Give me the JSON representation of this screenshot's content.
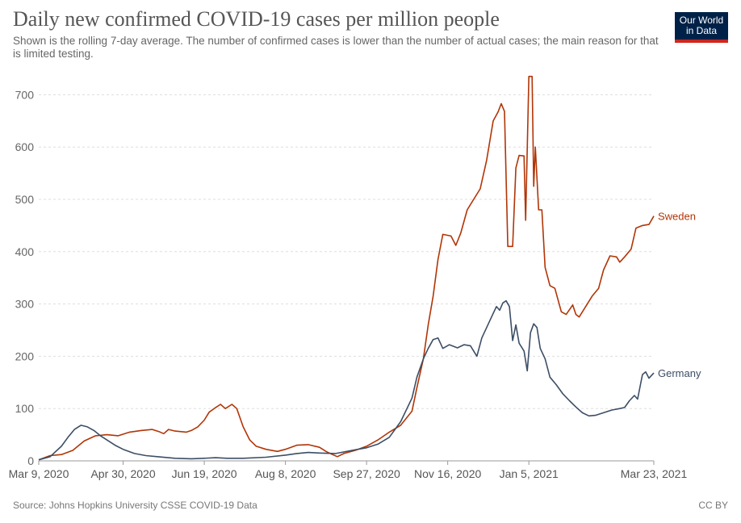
{
  "header": {
    "title": "Daily new confirmed COVID-19 cases per million people",
    "subtitle": "Shown is the rolling 7-day average. The number of confirmed cases is lower than the number of actual cases; the main reason for that is limited testing."
  },
  "logo": {
    "line1": "Our World",
    "line2": "in Data",
    "colors": {
      "bg": "#002147",
      "accent": "#ce261e"
    }
  },
  "footer": {
    "source": "Source: Johns Hopkins University CSSE COVID-19 Data",
    "license": "CC BY"
  },
  "chart_data": {
    "type": "line",
    "title": "Daily new confirmed COVID-19 cases per million people",
    "xlabel": "",
    "ylabel": "",
    "xlim": [
      "2020-03-09",
      "2021-03-23"
    ],
    "ylim": [
      0,
      750
    ],
    "y_ticks": [
      0,
      100,
      200,
      300,
      400,
      500,
      600,
      700
    ],
    "x_ticks": [
      {
        "date": "2020-03-09",
        "label": "Mar 9, 2020"
      },
      {
        "date": "2020-04-30",
        "label": "Apr 30, 2020"
      },
      {
        "date": "2020-06-19",
        "label": "Jun 19, 2020"
      },
      {
        "date": "2020-08-08",
        "label": "Aug 8, 2020"
      },
      {
        "date": "2020-09-27",
        "label": "Sep 27, 2020"
      },
      {
        "date": "2020-11-16",
        "label": "Nov 16, 2020"
      },
      {
        "date": "2021-01-05",
        "label": "Jan 5, 2021"
      },
      {
        "date": "2021-03-23",
        "label": "Mar 23, 2021"
      }
    ],
    "grid": true,
    "series": [
      {
        "name": "Sweden",
        "color": "#b13507",
        "points": [
          [
            "2020-03-09",
            2
          ],
          [
            "2020-03-16",
            10
          ],
          [
            "2020-03-23",
            12
          ],
          [
            "2020-03-30",
            20
          ],
          [
            "2020-04-06",
            38
          ],
          [
            "2020-04-13",
            48
          ],
          [
            "2020-04-20",
            50
          ],
          [
            "2020-04-27",
            48
          ],
          [
            "2020-05-04",
            55
          ],
          [
            "2020-05-11",
            58
          ],
          [
            "2020-05-18",
            60
          ],
          [
            "2020-05-22",
            56
          ],
          [
            "2020-05-25",
            52
          ],
          [
            "2020-05-28",
            60
          ],
          [
            "2020-06-01",
            57
          ],
          [
            "2020-06-08",
            55
          ],
          [
            "2020-06-11",
            58
          ],
          [
            "2020-06-15",
            65
          ],
          [
            "2020-06-19",
            78
          ],
          [
            "2020-06-22",
            93
          ],
          [
            "2020-06-26",
            102
          ],
          [
            "2020-06-29",
            108
          ],
          [
            "2020-07-02",
            100
          ],
          [
            "2020-07-06",
            108
          ],
          [
            "2020-07-09",
            100
          ],
          [
            "2020-07-13",
            65
          ],
          [
            "2020-07-17",
            40
          ],
          [
            "2020-07-21",
            28
          ],
          [
            "2020-07-27",
            22
          ],
          [
            "2020-08-03",
            18
          ],
          [
            "2020-08-08",
            22
          ],
          [
            "2020-08-15",
            30
          ],
          [
            "2020-08-22",
            31
          ],
          [
            "2020-08-29",
            26
          ],
          [
            "2020-09-02",
            18
          ],
          [
            "2020-09-06",
            12
          ],
          [
            "2020-09-09",
            8
          ],
          [
            "2020-09-13",
            14
          ],
          [
            "2020-09-20",
            20
          ],
          [
            "2020-09-27",
            28
          ],
          [
            "2020-10-04",
            40
          ],
          [
            "2020-10-11",
            55
          ],
          [
            "2020-10-18",
            68
          ],
          [
            "2020-10-25",
            95
          ],
          [
            "2020-10-28",
            140
          ],
          [
            "2020-11-01",
            195
          ],
          [
            "2020-11-04",
            260
          ],
          [
            "2020-11-07",
            315
          ],
          [
            "2020-11-10",
            385
          ],
          [
            "2020-11-13",
            433
          ],
          [
            "2020-11-18",
            430
          ],
          [
            "2020-11-21",
            412
          ],
          [
            "2020-11-24",
            435
          ],
          [
            "2020-11-28",
            480
          ],
          [
            "2020-12-02",
            500
          ],
          [
            "2020-12-06",
            520
          ],
          [
            "2020-12-10",
            575
          ],
          [
            "2020-12-14",
            650
          ],
          [
            "2020-12-17",
            667
          ],
          [
            "2020-12-19",
            683
          ],
          [
            "2020-12-21",
            668
          ],
          [
            "2020-12-23",
            410
          ],
          [
            "2020-12-26",
            410
          ],
          [
            "2020-12-28",
            560
          ],
          [
            "2020-12-30",
            584
          ],
          [
            "2021-01-02",
            583
          ],
          [
            "2021-01-03",
            460
          ],
          [
            "2021-01-05",
            735
          ],
          [
            "2021-01-07",
            735
          ],
          [
            "2021-01-08",
            525
          ],
          [
            "2021-01-09",
            600
          ],
          [
            "2021-01-11",
            480
          ],
          [
            "2021-01-13",
            480
          ],
          [
            "2021-01-15",
            370
          ],
          [
            "2021-01-18",
            335
          ],
          [
            "2021-01-21",
            330
          ],
          [
            "2021-01-25",
            285
          ],
          [
            "2021-01-28",
            280
          ],
          [
            "2021-02-01",
            298
          ],
          [
            "2021-02-03",
            280
          ],
          [
            "2021-02-05",
            275
          ],
          [
            "2021-02-09",
            295
          ],
          [
            "2021-02-13",
            315
          ],
          [
            "2021-02-17",
            330
          ],
          [
            "2021-02-20",
            365
          ],
          [
            "2021-02-24",
            392
          ],
          [
            "2021-02-28",
            390
          ],
          [
            "2021-03-02",
            380
          ],
          [
            "2021-03-05",
            390
          ],
          [
            "2021-03-09",
            405
          ],
          [
            "2021-03-12",
            445
          ],
          [
            "2021-03-16",
            450
          ],
          [
            "2021-03-20",
            452
          ],
          [
            "2021-03-23",
            468
          ]
        ]
      },
      {
        "name": "Germany",
        "color": "#3c4e66",
        "points": [
          [
            "2020-03-09",
            2
          ],
          [
            "2020-03-16",
            8
          ],
          [
            "2020-03-23",
            28
          ],
          [
            "2020-03-27",
            45
          ],
          [
            "2020-03-31",
            60
          ],
          [
            "2020-04-04",
            68
          ],
          [
            "2020-04-08",
            65
          ],
          [
            "2020-04-12",
            58
          ],
          [
            "2020-04-16",
            48
          ],
          [
            "2020-04-20",
            40
          ],
          [
            "2020-04-25",
            30
          ],
          [
            "2020-04-30",
            22
          ],
          [
            "2020-05-07",
            14
          ],
          [
            "2020-05-14",
            10
          ],
          [
            "2020-05-21",
            8
          ],
          [
            "2020-06-01",
            5
          ],
          [
            "2020-06-11",
            4
          ],
          [
            "2020-06-19",
            5
          ],
          [
            "2020-06-26",
            6
          ],
          [
            "2020-07-03",
            5
          ],
          [
            "2020-07-13",
            5
          ],
          [
            "2020-07-27",
            7
          ],
          [
            "2020-08-08",
            11
          ],
          [
            "2020-08-15",
            14
          ],
          [
            "2020-08-22",
            16
          ],
          [
            "2020-08-29",
            15
          ],
          [
            "2020-09-08",
            14
          ],
          [
            "2020-09-18",
            20
          ],
          [
            "2020-09-27",
            25
          ],
          [
            "2020-10-04",
            32
          ],
          [
            "2020-10-11",
            45
          ],
          [
            "2020-10-18",
            75
          ],
          [
            "2020-10-25",
            120
          ],
          [
            "2020-10-28",
            160
          ],
          [
            "2020-11-01",
            195
          ],
          [
            "2020-11-04",
            215
          ],
          [
            "2020-11-07",
            232
          ],
          [
            "2020-11-10",
            235
          ],
          [
            "2020-11-13",
            215
          ],
          [
            "2020-11-17",
            222
          ],
          [
            "2020-11-22",
            216
          ],
          [
            "2020-11-26",
            222
          ],
          [
            "2020-11-30",
            220
          ],
          [
            "2020-12-04",
            200
          ],
          [
            "2020-12-07",
            235
          ],
          [
            "2020-12-10",
            255
          ],
          [
            "2020-12-13",
            275
          ],
          [
            "2020-12-16",
            295
          ],
          [
            "2020-12-18",
            288
          ],
          [
            "2020-12-20",
            302
          ],
          [
            "2020-12-22",
            306
          ],
          [
            "2020-12-24",
            295
          ],
          [
            "2020-12-26",
            230
          ],
          [
            "2020-12-28",
            260
          ],
          [
            "2020-12-30",
            225
          ],
          [
            "2021-01-02",
            210
          ],
          [
            "2021-01-04",
            172
          ],
          [
            "2021-01-06",
            245
          ],
          [
            "2021-01-08",
            262
          ],
          [
            "2021-01-10",
            255
          ],
          [
            "2021-01-12",
            215
          ],
          [
            "2021-01-15",
            195
          ],
          [
            "2021-01-18",
            160
          ],
          [
            "2021-01-22",
            145
          ],
          [
            "2021-01-26",
            128
          ],
          [
            "2021-01-30",
            115
          ],
          [
            "2021-02-03",
            103
          ],
          [
            "2021-02-07",
            92
          ],
          [
            "2021-02-11",
            86
          ],
          [
            "2021-02-15",
            87
          ],
          [
            "2021-02-20",
            92
          ],
          [
            "2021-02-25",
            97
          ],
          [
            "2021-03-02",
            100
          ],
          [
            "2021-03-05",
            102
          ],
          [
            "2021-03-08",
            115
          ],
          [
            "2021-03-11",
            125
          ],
          [
            "2021-03-13",
            118
          ],
          [
            "2021-03-16",
            165
          ],
          [
            "2021-03-18",
            170
          ],
          [
            "2021-03-20",
            158
          ],
          [
            "2021-03-23",
            168
          ]
        ]
      }
    ]
  }
}
